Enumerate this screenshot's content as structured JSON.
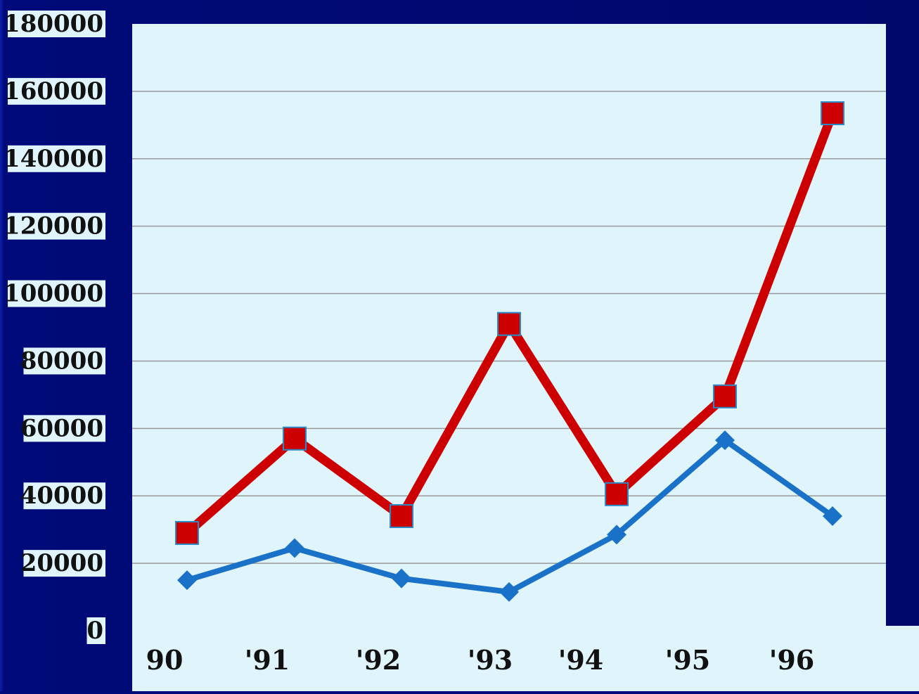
{
  "chart_data": {
    "type": "line",
    "categories": [
      "90",
      "'91",
      "'92",
      "'93",
      "'94",
      "'95",
      "'96"
    ],
    "series": [
      {
        "marker": "square",
        "color": "#cc0000",
        "values": [
          29000,
          57000,
          34000,
          91000,
          40500,
          69500,
          153500
        ]
      },
      {
        "marker": "diamond",
        "color": "#1a72c8",
        "values": [
          15000,
          24500,
          15500,
          11500,
          28500,
          56500,
          34000
        ]
      }
    ],
    "ylim": [
      0,
      180000
    ],
    "yticks": [
      "0",
      "20000",
      "40000",
      "60000",
      "80000",
      "100000",
      "120000",
      "140000",
      "160000",
      "180000"
    ],
    "grid": true,
    "title": "",
    "xlabel": "",
    "ylabel": ""
  },
  "colors": {
    "background": "#000a78",
    "plot_area": "#e0f4fc",
    "gridline": "#999999",
    "tick_label_box": "#e0f4fc"
  }
}
